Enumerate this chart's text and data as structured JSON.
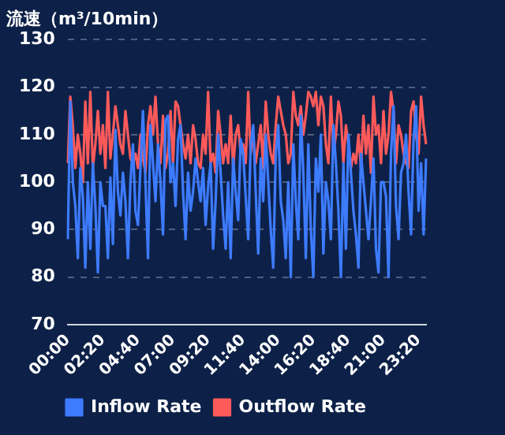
{
  "chart_data": {
    "type": "line",
    "title": "流速（m³/10min）",
    "categories": [
      "00:00",
      null,
      null,
      null,
      null,
      null,
      null,
      null,
      null,
      null,
      null,
      null,
      null,
      null,
      "02:20",
      null,
      null,
      null,
      null,
      null,
      null,
      null,
      null,
      null,
      null,
      null,
      null,
      null,
      "04:40",
      null,
      null,
      null,
      null,
      null,
      null,
      null,
      null,
      null,
      null,
      null,
      null,
      null,
      "07:00",
      null,
      null,
      null,
      null,
      null,
      null,
      null,
      null,
      null,
      null,
      null,
      null,
      null,
      "09:20",
      null,
      null,
      null,
      null,
      null,
      null,
      null,
      null,
      null,
      null,
      null,
      null,
      null,
      "11:40",
      null,
      null,
      null,
      null,
      null,
      null,
      null,
      null,
      null,
      null,
      null,
      null,
      null,
      "14:00",
      null,
      null,
      null,
      null,
      null,
      null,
      null,
      null,
      null,
      null,
      null,
      null,
      null,
      "16:20",
      null,
      null,
      null,
      null,
      null,
      null,
      null,
      null,
      null,
      null,
      null,
      null,
      null,
      "18:40",
      null,
      null,
      null,
      null,
      null,
      null,
      null,
      null,
      null,
      null,
      null,
      null,
      null,
      "21:00",
      null,
      null,
      null,
      null,
      null,
      null,
      null,
      null,
      null,
      null,
      null,
      null,
      null,
      "23:20",
      null,
      null,
      null
    ],
    "series": [
      {
        "name": "Inflow Rate",
        "color": "#3d7bff",
        "values": [
          88,
          117,
          100,
          95,
          84,
          103,
          97,
          82,
          100,
          86,
          104,
          95,
          81,
          100,
          95,
          95,
          84,
          101,
          87,
          111,
          98,
          93,
          102,
          96,
          84,
          100,
          108,
          94,
          91,
          103,
          115,
          100,
          84,
          112,
          104,
          96,
          108,
          100,
          89,
          113,
          114,
          100,
          104,
          95,
          109,
          112,
          98,
          88,
          102,
          94,
          98,
          105,
          100,
          96,
          103,
          91,
          99,
          104,
          86,
          96,
          110,
          102,
          93,
          86,
          100,
          84,
          105,
          98,
          92,
          109,
          106,
          97,
          88,
          108,
          112,
          98,
          85,
          105,
          96,
          110,
          100,
          90,
          82,
          106,
          112,
          96,
          92,
          84,
          100,
          80,
          108,
          96,
          88,
          114,
          102,
          84,
          108,
          90,
          80,
          105,
          98,
          110,
          85,
          100,
          96,
          88,
          112,
          104,
          94,
          80,
          104,
          86,
          110,
          102,
          94,
          89,
          82,
          106,
          100,
          94,
          88,
          96,
          105,
          86,
          81,
          100,
          100,
          97,
          80,
          106,
          116,
          95,
          88,
          102,
          104,
          110,
          98,
          89,
          109,
          116,
          94,
          104,
          89,
          105
        ]
      },
      {
        "name": "Outflow Rate",
        "color": "#ff5a5a",
        "values": [
          104,
          118,
          112,
          103,
          110,
          106,
          100,
          117,
          104,
          119,
          103,
          108,
          115,
          106,
          112,
          103,
          119,
          105,
          110,
          116,
          112,
          108,
          106,
          115,
          110,
          105,
          104,
          106,
          103,
          110,
          105,
          102,
          112,
          116,
          110,
          118,
          108,
          104,
          114,
          103,
          106,
          115,
          104,
          117,
          116,
          112,
          108,
          105,
          110,
          104,
          112,
          109,
          104,
          103,
          110,
          106,
          119,
          104,
          106,
          102,
          115,
          110,
          104,
          108,
          104,
          114,
          103,
          110,
          112,
          106,
          108,
          104,
          119,
          106,
          110,
          104,
          108,
          112,
          103,
          117,
          110,
          106,
          104,
          112,
          118,
          115,
          112,
          110,
          104,
          106,
          119,
          114,
          112,
          116,
          110,
          114,
          119,
          118,
          116,
          119,
          112,
          118,
          116,
          108,
          104,
          118,
          106,
          110,
          117,
          114,
          104,
          112,
          108,
          103,
          106,
          104,
          110,
          103,
          114,
          106,
          112,
          102,
          118,
          110,
          112,
          104,
          115,
          106,
          110,
          119,
          115,
          104,
          112,
          110,
          106,
          104,
          103,
          115,
          117,
          110,
          106,
          118,
          112,
          108
        ]
      }
    ],
    "ylim": [
      70,
      130
    ],
    "yticks": [
      70,
      80,
      90,
      100,
      110,
      120,
      130
    ],
    "grid": "y",
    "legend": "bottom",
    "marker": "none",
    "line_style": "solid"
  }
}
